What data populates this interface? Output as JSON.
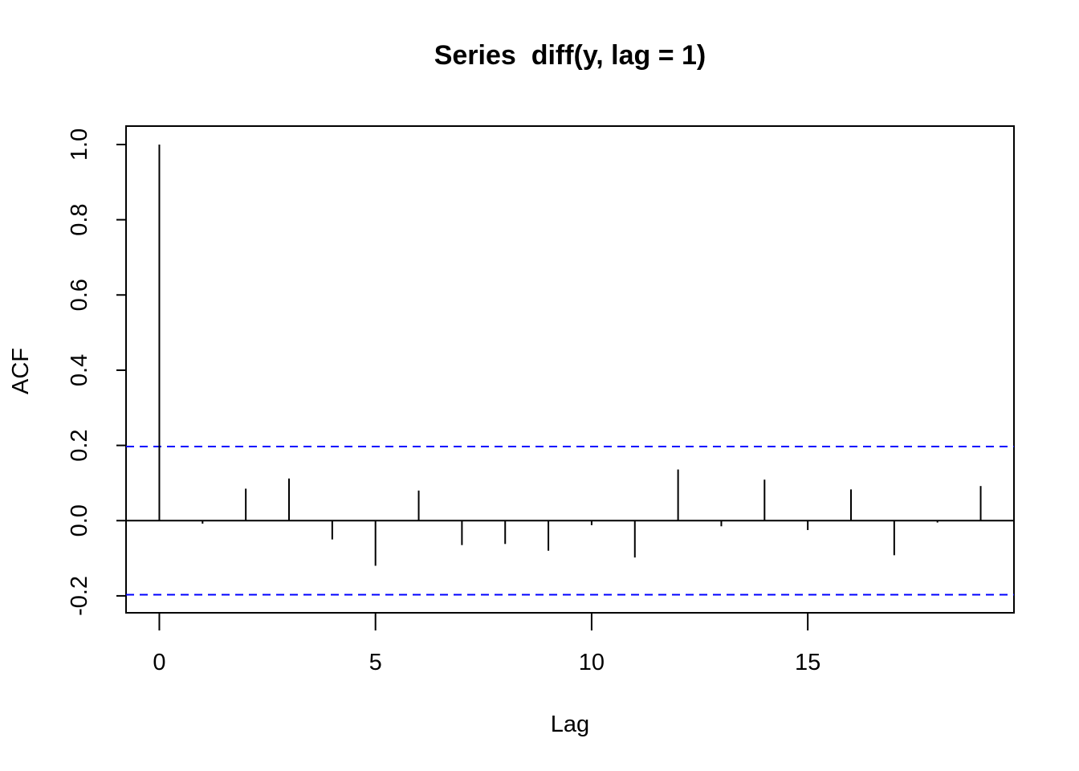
{
  "chart_data": {
    "type": "bar",
    "title": "Series  diff(y, lag = 1)",
    "xlabel": "Lag",
    "ylabel": "ACF",
    "x": [
      0,
      1,
      2,
      3,
      4,
      5,
      6,
      7,
      8,
      9,
      10,
      11,
      12,
      13,
      14,
      15,
      16,
      17,
      18,
      19
    ],
    "values": [
      1.0,
      -0.008,
      0.085,
      0.112,
      -0.05,
      -0.12,
      0.08,
      -0.065,
      -0.062,
      -0.08,
      -0.012,
      -0.098,
      0.136,
      -0.015,
      0.109,
      -0.025,
      0.083,
      -0.092,
      -0.005,
      0.092
    ],
    "confidence_bounds": [
      0.197,
      -0.197
    ],
    "confidence_color": "#0000ff",
    "bar_color": "#000000",
    "xlim": [
      -0.77,
      19.77
    ],
    "ylim": [
      -0.245,
      1.049
    ],
    "x_ticks": [
      0,
      5,
      10,
      15
    ],
    "x_tick_labels": [
      "0",
      "5",
      "10",
      "15"
    ],
    "y_ticks": [
      -0.2,
      0.0,
      0.2,
      0.4,
      0.6,
      0.8,
      1.0
    ],
    "y_tick_labels": [
      "-0.2",
      "0.0",
      "0.2",
      "0.4",
      "0.6",
      "0.8",
      "1.0"
    ],
    "grid": false,
    "legend": "none"
  }
}
